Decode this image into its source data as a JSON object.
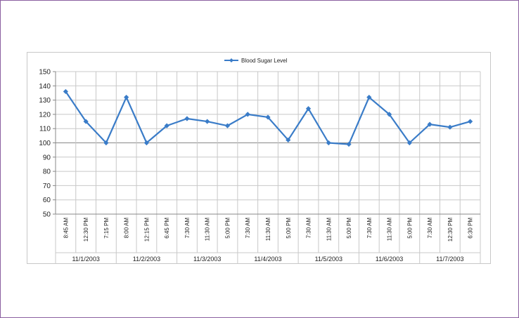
{
  "chart_data": {
    "type": "line",
    "title": "",
    "xlabel": "",
    "ylabel": "",
    "ylim": [
      50,
      150
    ],
    "yticks": [
      50,
      60,
      70,
      80,
      90,
      100,
      110,
      120,
      130,
      140,
      150
    ],
    "grid": true,
    "legend_position": "top-center",
    "series": [
      {
        "name": "Blood Sugar Level",
        "color": "#3a7cc8",
        "values": [
          136,
          115,
          100,
          132,
          100,
          112,
          117,
          115,
          112,
          120,
          118,
          102,
          124,
          100,
          99,
          132,
          120,
          100,
          113,
          111,
          115
        ]
      }
    ],
    "categories": [
      "8:45 AM",
      "12:30 PM",
      "7:15 PM",
      "8:00 AM",
      "12:15 PM",
      "6:45 PM",
      "7:30 AM",
      "11:30 AM",
      "5:00 PM",
      "7:30 AM",
      "11:30 AM",
      "5:00 PM",
      "7:30 AM",
      "11:30 AM",
      "5:00 PM",
      "7:30 AM",
      "11:30 AM",
      "5:00 PM",
      "7:30 AM",
      "12:30 PM",
      "6:30 PM"
    ],
    "date_groups": [
      {
        "label": "11/1/2003",
        "count": 3
      },
      {
        "label": "11/2/2003",
        "count": 3
      },
      {
        "label": "11/3/2003",
        "count": 3
      },
      {
        "label": "11/4/2003",
        "count": 3
      },
      {
        "label": "11/5/2003",
        "count": 3
      },
      {
        "label": "11/6/2003",
        "count": 3
      },
      {
        "label": "11/7/2003",
        "count": 3
      }
    ]
  }
}
